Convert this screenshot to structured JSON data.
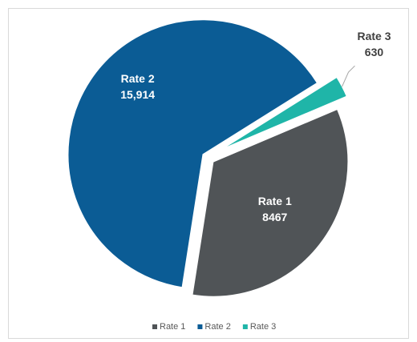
{
  "chart_data": {
    "type": "pie",
    "categories": [
      "Rate 1",
      "Rate 2",
      "Rate 3"
    ],
    "values": [
      8467,
      15914,
      630
    ],
    "value_labels": [
      "8467",
      "15,914",
      "630"
    ],
    "colors": [
      "#505457",
      "#0b5c95",
      "#1fb5a8"
    ],
    "legend": "bottom"
  }
}
